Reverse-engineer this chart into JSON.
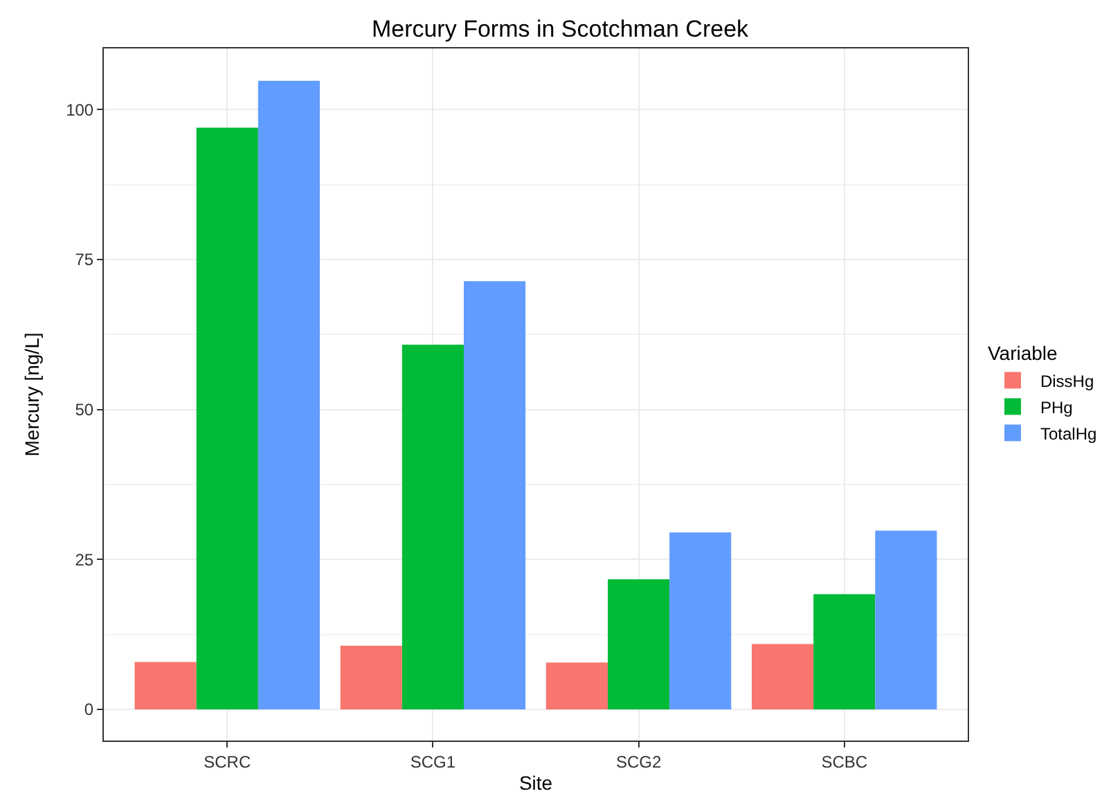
{
  "chart_data": {
    "type": "bar",
    "title": "Mercury Forms in Scotchman Creek",
    "xlabel": "Site",
    "ylabel": "Mercury [ng/L]",
    "legend_title": "Variable",
    "categories": [
      "SCRC",
      "SCG1",
      "SCG2",
      "SCBC"
    ],
    "series": [
      {
        "name": "DissHg",
        "color": "#f8766d",
        "values": [
          7.9,
          10.6,
          7.8,
          10.9
        ]
      },
      {
        "name": "PHg",
        "color": "#00ba38",
        "values": [
          97.0,
          60.8,
          21.7,
          19.2
        ]
      },
      {
        "name": "TotalHg",
        "color": "#619cff",
        "values": [
          104.8,
          71.4,
          29.5,
          29.8
        ]
      }
    ],
    "ylim": [
      -5.2,
      110.2
    ],
    "yticks": [
      0,
      25,
      50,
      75,
      100
    ],
    "grid": true,
    "legend": "right"
  }
}
